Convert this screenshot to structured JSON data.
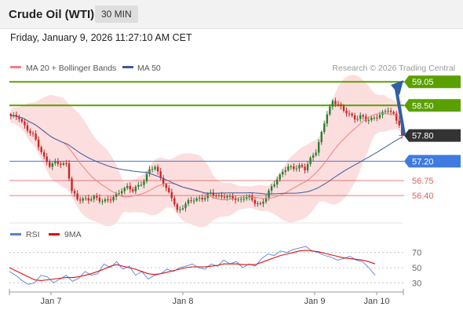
{
  "header": {
    "title": "Crude Oil (WTI)",
    "timeframe": "30 MIN"
  },
  "datetime": "Friday, January 9, 2026 11:27:10 AM CET",
  "legend": {
    "ma_bb": "MA 20 + Bollinger Bands",
    "ma50": "MA 50",
    "credit": "Research © 2026 Trading Central"
  },
  "colors": {
    "resistance": "#5aa000",
    "pivot": "#3f7ae0",
    "support": "#e06060",
    "current": "#333333",
    "up": "#2f7d32",
    "down": "#c62828",
    "ma20": "#f08080",
    "ma50": "#3a5ba0",
    "bands": "#fbd3d3",
    "arrow": "#2f5fa8"
  },
  "chart_data": [
    {
      "type": "line",
      "subtype": "candlestick",
      "y_range": [
        55.8,
        59.2
      ],
      "x_ticks": [
        "Jan 7",
        "Jan 8",
        "Jan 9",
        "Jan 10"
      ],
      "levels": [
        {
          "label": "59.05",
          "value": 59.05,
          "kind": "resistance"
        },
        {
          "label": "58.50",
          "value": 58.5,
          "kind": "resistance"
        },
        {
          "label": "57.80",
          "value": 57.8,
          "kind": "current"
        },
        {
          "label": "57.20",
          "value": 57.2,
          "kind": "pivot"
        },
        {
          "label": "56.75",
          "value": 56.75,
          "kind": "support"
        },
        {
          "label": "56.40",
          "value": 56.4,
          "kind": "support"
        }
      ],
      "close_path": [
        [
          0,
          58.25
        ],
        [
          3,
          58.2
        ],
        [
          6,
          57.95
        ],
        [
          8,
          57.8
        ],
        [
          10,
          57.55
        ],
        [
          12,
          57.3
        ],
        [
          14,
          57.1
        ],
        [
          16,
          57.15
        ],
        [
          18,
          57.15
        ],
        [
          20,
          57.15
        ],
        [
          22,
          56.5
        ],
        [
          24,
          56.3
        ],
        [
          26,
          56.35
        ],
        [
          28,
          56.3
        ],
        [
          30,
          56.35
        ],
        [
          32,
          56.3
        ],
        [
          34,
          56.3
        ],
        [
          36,
          56.3
        ],
        [
          38,
          56.4
        ],
        [
          40,
          56.55
        ],
        [
          42,
          56.6
        ],
        [
          44,
          56.5
        ],
        [
          46,
          56.65
        ],
        [
          48,
          56.75
        ],
        [
          50,
          57.0
        ],
        [
          52,
          57.05
        ],
        [
          54,
          56.85
        ],
        [
          56,
          56.55
        ],
        [
          58,
          56.35
        ],
        [
          60,
          56.05
        ],
        [
          62,
          56.15
        ],
        [
          64,
          56.25
        ],
        [
          66,
          56.3
        ],
        [
          68,
          56.35
        ],
        [
          70,
          56.35
        ],
        [
          72,
          56.45
        ],
        [
          74,
          56.4
        ],
        [
          76,
          56.4
        ],
        [
          78,
          56.35
        ],
        [
          80,
          56.35
        ],
        [
          82,
          56.3
        ],
        [
          84,
          56.35
        ],
        [
          86,
          56.35
        ],
        [
          88,
          56.25
        ],
        [
          90,
          56.2
        ],
        [
          92,
          56.35
        ],
        [
          94,
          56.6
        ],
        [
          96,
          56.8
        ],
        [
          98,
          56.95
        ],
        [
          100,
          57.05
        ],
        [
          102,
          57.05
        ],
        [
          104,
          57.1
        ],
        [
          106,
          57.0
        ],
        [
          108,
          57.25
        ],
        [
          110,
          57.45
        ],
        [
          112,
          57.85
        ],
        [
          114,
          58.3
        ],
        [
          116,
          58.6
        ],
        [
          118,
          58.55
        ],
        [
          120,
          58.35
        ],
        [
          122,
          58.3
        ],
        [
          124,
          58.2
        ],
        [
          126,
          58.25
        ],
        [
          128,
          58.15
        ],
        [
          130,
          58.2
        ],
        [
          132,
          58.25
        ],
        [
          134,
          58.3
        ],
        [
          136,
          58.4
        ],
        [
          138,
          58.3
        ],
        [
          140,
          58.05
        ],
        [
          141,
          57.75
        ]
      ],
      "projection": {
        "from": 57.8,
        "to": 59.05
      }
    },
    {
      "type": "line",
      "title": "RSI",
      "series": [
        {
          "name": "RSI"
        },
        {
          "name": "9MA"
        }
      ],
      "y_range": [
        20,
        80
      ],
      "y_ticks": [
        70,
        50,
        30
      ],
      "rsi": [
        45,
        40,
        33,
        28,
        30,
        40,
        38,
        30,
        35,
        40,
        32,
        36,
        45,
        40,
        42,
        55,
        50,
        58,
        48,
        52,
        40,
        45,
        35,
        40,
        42,
        48,
        45,
        50,
        52,
        55,
        50,
        48,
        55,
        52,
        60,
        55,
        58,
        50,
        55,
        52,
        62,
        68,
        66,
        72,
        70,
        74,
        76,
        78,
        72,
        70,
        66,
        64,
        60,
        62,
        65,
        60,
        58,
        50,
        40
      ],
      "ma9": [
        50,
        46,
        42,
        38,
        34,
        33,
        34,
        35,
        36,
        37,
        37,
        38,
        40,
        42,
        45,
        48,
        52,
        54,
        52,
        50,
        48,
        45,
        42,
        41,
        42,
        44,
        46,
        48,
        50,
        51,
        51,
        51,
        52,
        53,
        55,
        55,
        55,
        54,
        54,
        54,
        57,
        60,
        63,
        66,
        68,
        70,
        72,
        73,
        72,
        71,
        69,
        67,
        65,
        63,
        62,
        61,
        60,
        58,
        55
      ]
    }
  ]
}
